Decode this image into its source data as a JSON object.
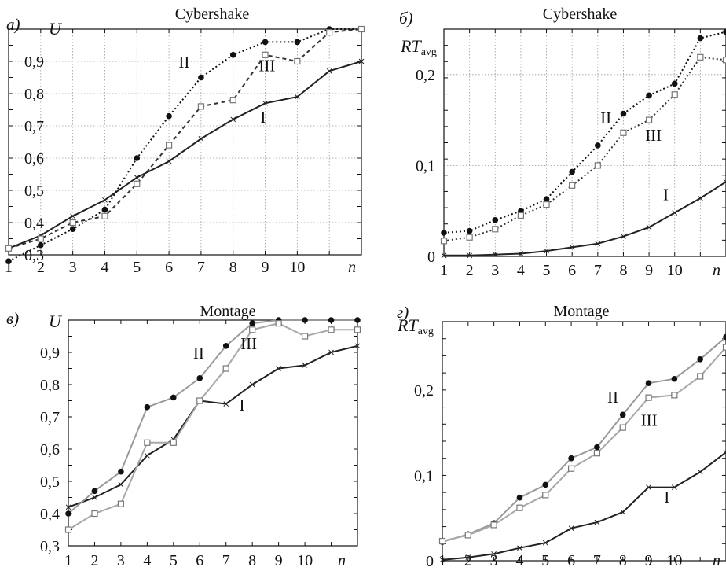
{
  "chart_data": [
    {
      "panel": "a)",
      "type": "line",
      "title": "Cybershake",
      "ylabel": "U",
      "xlabel": "n",
      "x": [
        1,
        2,
        3,
        4,
        5,
        6,
        7,
        8,
        9,
        10,
        11,
        12
      ],
      "xticks": [
        "1",
        "2",
        "3",
        "4",
        "5",
        "6",
        "7",
        "8",
        "9",
        "10"
      ],
      "xlim": [
        1,
        12
      ],
      "ylim": [
        0.3,
        1.0
      ],
      "yticks": [
        "0,3",
        "0,4",
        "0,5",
        "0,6",
        "0,7",
        "0,8",
        "0,9"
      ],
      "grid": true,
      "series": [
        {
          "name": "I",
          "style": "solid-cross",
          "color": "#222222",
          "values": [
            0.32,
            0.36,
            0.42,
            0.47,
            0.54,
            0.59,
            0.66,
            0.72,
            0.77,
            0.79,
            0.87,
            0.9
          ]
        },
        {
          "name": "II",
          "style": "dotted-dot",
          "color": "#111111",
          "values": [
            0.28,
            0.33,
            0.38,
            0.44,
            0.6,
            0.73,
            0.85,
            0.92,
            0.96,
            0.96,
            1.0,
            1.0
          ]
        },
        {
          "name": "III",
          "style": "dashed-square",
          "color": "#333333",
          "values": [
            0.32,
            0.35,
            0.4,
            0.42,
            0.52,
            0.64,
            0.76,
            0.78,
            0.92,
            0.9,
            0.99,
            1.0
          ]
        }
      ],
      "labels": [
        {
          "text": "II",
          "x": 6.3,
          "y": 0.88
        },
        {
          "text": "III",
          "x": 8.8,
          "y": 0.87
        },
        {
          "text": "I",
          "x": 8.85,
          "y": 0.71
        }
      ]
    },
    {
      "panel": "б)",
      "type": "line",
      "title": "Cybershake",
      "ylabel": "RT",
      "ylabel_sub": "avg",
      "xlabel": "n",
      "x": [
        1,
        2,
        3,
        4,
        5,
        6,
        7,
        8,
        9,
        10,
        11,
        12
      ],
      "xticks": [
        "1",
        "2",
        "3",
        "4",
        "5",
        "6",
        "7",
        "8",
        "9",
        "10"
      ],
      "xlim": [
        1,
        12
      ],
      "ylim": [
        0,
        0.25
      ],
      "yticks": [
        "0",
        "0,1",
        "0,2"
      ],
      "grid": true,
      "series": [
        {
          "name": "I",
          "style": "solid-cross",
          "color": "#222222",
          "values": [
            0.001,
            0.001,
            0.002,
            0.003,
            0.006,
            0.01,
            0.014,
            0.022,
            0.032,
            0.048,
            0.064,
            0.082
          ]
        },
        {
          "name": "II",
          "style": "dotted-dot",
          "color": "#111111",
          "values": [
            0.026,
            0.028,
            0.04,
            0.05,
            0.063,
            0.093,
            0.122,
            0.157,
            0.177,
            0.19,
            0.24,
            0.247
          ]
        },
        {
          "name": "III",
          "style": "dotted-square",
          "color": "#333333",
          "values": [
            0.017,
            0.021,
            0.03,
            0.045,
            0.057,
            0.078,
            0.1,
            0.136,
            0.15,
            0.178,
            0.219,
            0.216
          ]
        }
      ],
      "labels": [
        {
          "text": "II",
          "x": 7.1,
          "y": 0.146
        },
        {
          "text": "III",
          "x": 8.85,
          "y": 0.127
        },
        {
          "text": "I",
          "x": 9.55,
          "y": 0.062
        }
      ]
    },
    {
      "panel": "в)",
      "type": "line",
      "title": "Montage",
      "ylabel": "U",
      "xlabel": "n",
      "x": [
        1,
        2,
        3,
        4,
        5,
        6,
        7,
        8,
        9,
        10,
        11,
        12
      ],
      "xticks": [
        "1",
        "2",
        "3",
        "4",
        "5",
        "6",
        "7",
        "8",
        "9",
        "10"
      ],
      "xlim": [
        1,
        12
      ],
      "ylim": [
        0.3,
        1.0
      ],
      "yticks": [
        "0,3",
        "0,4",
        "0,5",
        "0,6",
        "0,7",
        "0,8",
        "0,9"
      ],
      "grid": false,
      "series": [
        {
          "name": "I",
          "style": "solid-cross",
          "color": "#222222",
          "values": [
            0.42,
            0.45,
            0.49,
            0.58,
            0.63,
            0.75,
            0.74,
            0.8,
            0.85,
            0.86,
            0.9,
            0.92
          ]
        },
        {
          "name": "II",
          "style": "solid-dot",
          "color": "#9a9a9a",
          "values": [
            0.4,
            0.47,
            0.53,
            0.73,
            0.76,
            0.82,
            0.92,
            0.99,
            1.0,
            1.0,
            1.0,
            1.0
          ]
        },
        {
          "name": "III",
          "style": "solid-square",
          "color": "#a8a8a8",
          "values": [
            0.35,
            0.4,
            0.43,
            0.62,
            0.62,
            0.75,
            0.85,
            0.97,
            0.99,
            0.95,
            0.97,
            0.97
          ]
        }
      ],
      "labels": [
        {
          "text": "II",
          "x": 5.75,
          "y": 0.88
        },
        {
          "text": "III",
          "x": 7.55,
          "y": 0.91
        },
        {
          "text": "I",
          "x": 7.5,
          "y": 0.72
        }
      ]
    },
    {
      "panel": "г)",
      "type": "line",
      "title": "Montage",
      "ylabel": "RT",
      "ylabel_sub": "avg",
      "xlabel": "n",
      "x": [
        1,
        2,
        3,
        4,
        5,
        6,
        7,
        8,
        9,
        10,
        11,
        12
      ],
      "xticks": [
        "1",
        "2",
        "3",
        "4",
        "5",
        "6",
        "7",
        "8",
        "9",
        "10"
      ],
      "xlim": [
        1,
        12
      ],
      "ylim": [
        0,
        0.28
      ],
      "yticks": [
        "0",
        "0,1",
        "0,2"
      ],
      "grid": false,
      "series": [
        {
          "name": "I",
          "style": "solid-cross",
          "color": "#222222",
          "values": [
            0.001,
            0.004,
            0.008,
            0.015,
            0.021,
            0.038,
            0.045,
            0.057,
            0.086,
            0.086,
            0.104,
            0.127
          ]
        },
        {
          "name": "II",
          "style": "solid-dot",
          "color": "#9a9a9a",
          "values": [
            0.022,
            0.031,
            0.044,
            0.074,
            0.089,
            0.12,
            0.133,
            0.171,
            0.208,
            0.213,
            0.236,
            0.262
          ]
        },
        {
          "name": "III",
          "style": "solid-square",
          "color": "#a8a8a8",
          "values": [
            0.023,
            0.03,
            0.042,
            0.062,
            0.077,
            0.108,
            0.126,
            0.156,
            0.191,
            0.194,
            0.216,
            0.25
          ]
        }
      ],
      "labels": [
        {
          "text": "II",
          "x": 7.4,
          "y": 0.185
        },
        {
          "text": "III",
          "x": 8.7,
          "y": 0.158
        },
        {
          "text": "I",
          "x": 9.6,
          "y": 0.068
        }
      ]
    }
  ]
}
